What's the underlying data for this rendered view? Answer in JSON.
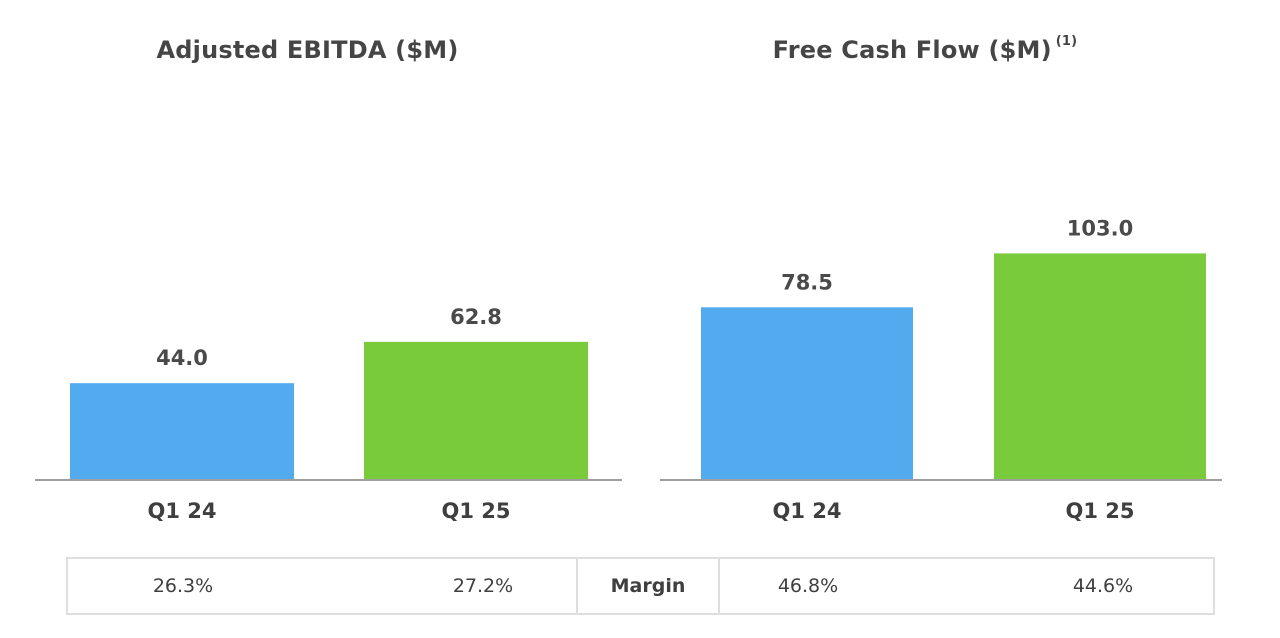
{
  "chart_data": [
    {
      "type": "bar",
      "title": "Adjusted EBITDA ($M)",
      "categories": [
        "Q1 24",
        "Q1 25"
      ],
      "values": [
        44.0,
        62.8
      ],
      "value_labels": [
        "44.0",
        "62.8"
      ],
      "colors": [
        "#52aaef",
        "#7acb3c"
      ],
      "ylim": [
        0,
        110
      ],
      "grid": false
    },
    {
      "type": "bar",
      "title": "Free Cash Flow ($M)",
      "title_footnote": "(1)",
      "categories": [
        "Q1 24",
        "Q1 25"
      ],
      "values": [
        78.5,
        103.0
      ],
      "value_labels": [
        "78.5",
        "103.0"
      ],
      "colors": [
        "#52aaef",
        "#7acb3c"
      ],
      "ylim": [
        0,
        110
      ],
      "grid": false
    }
  ],
  "margin_row": {
    "label": "Margin",
    "ebitda_margins": [
      "26.3%",
      "27.2%"
    ],
    "fcf_margins": [
      "46.8%",
      "44.6%"
    ]
  },
  "colors": {
    "q1_24_bar": "#52aaef",
    "q1_25_bar": "#7acb3c",
    "axis": "#9e9e9e",
    "text": "#4a4a4a"
  }
}
